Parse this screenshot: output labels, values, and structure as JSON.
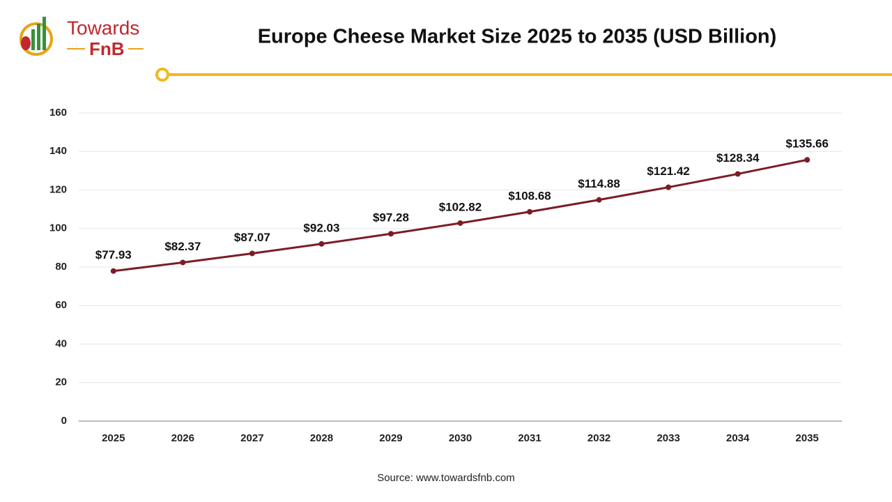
{
  "logo": {
    "line1": "Towards",
    "line2": "FnB"
  },
  "chart_data": {
    "type": "line",
    "title": "Europe Cheese Market Size 2025 to 2035 (USD Billion)",
    "categories": [
      "2025",
      "2026",
      "2027",
      "2028",
      "2029",
      "2030",
      "2031",
      "2032",
      "2033",
      "2034",
      "2035"
    ],
    "values": [
      77.93,
      82.37,
      87.07,
      92.03,
      97.28,
      102.82,
      108.68,
      114.88,
      121.42,
      128.34,
      135.66
    ],
    "value_labels": [
      "$77.93",
      "$82.37",
      "$87.07",
      "$92.03",
      "$97.28",
      "$102.82",
      "$108.68",
      "$114.88",
      "$121.42",
      "$128.34",
      "$135.66"
    ],
    "color": "#7b1c25",
    "ylim": [
      0,
      160
    ],
    "yticks": [
      0,
      20,
      40,
      60,
      80,
      100,
      120,
      140,
      160
    ],
    "grid": true,
    "source": "Source: www.towardsfnb.com"
  }
}
